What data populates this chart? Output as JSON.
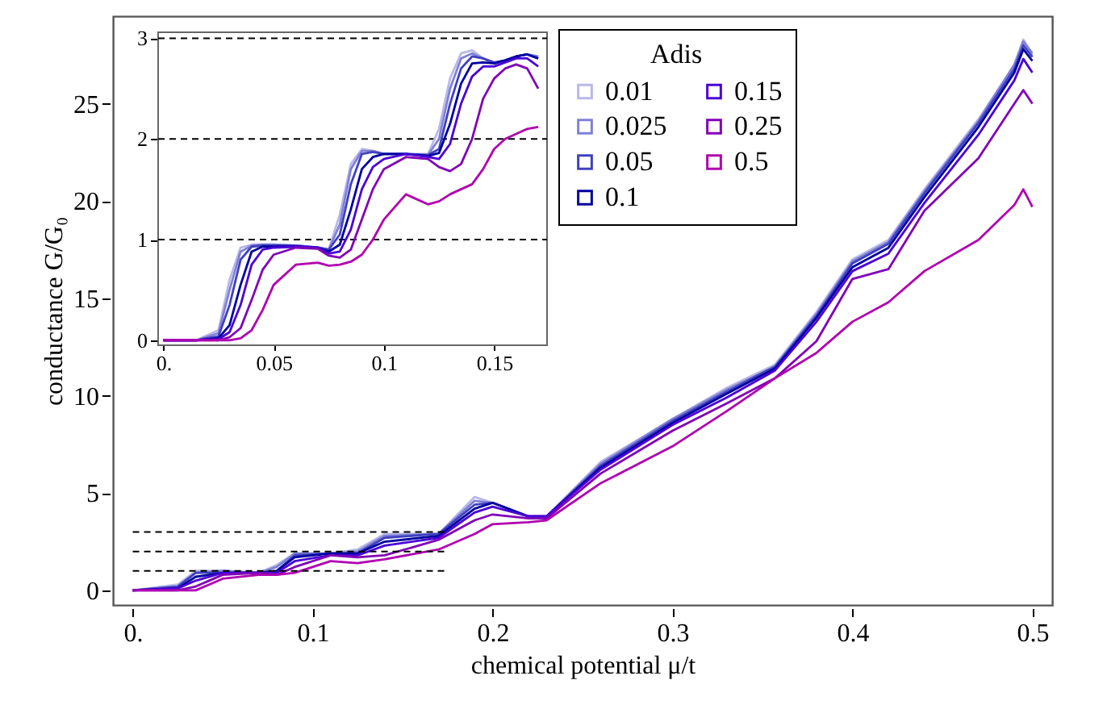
{
  "chart_data": [
    {
      "type": "line",
      "xlabel": "chemical potential  μ/t",
      "ylabel": "conductance  G/G₀",
      "legend_title": "Adis",
      "legend": "top",
      "grid": false,
      "xlim": [
        -0.011,
        0.511
      ],
      "ylim": [
        -0.75,
        29.5
      ],
      "xticks": [
        {
          "value": 0,
          "label": "0."
        },
        0.1,
        0.2,
        0.3,
        0.4,
        0.5
      ],
      "yticks": [
        0,
        5,
        10,
        15,
        20,
        25
      ],
      "x": [
        0,
        0.025,
        0.035,
        0.05,
        0.07,
        0.08,
        0.09,
        0.11,
        0.125,
        0.14,
        0.17,
        0.19,
        0.2,
        0.22,
        0.23,
        0.26,
        0.3,
        0.33,
        0.357,
        0.38,
        0.4,
        0.42,
        0.44,
        0.47,
        0.49,
        0.495,
        0.5
      ],
      "ref_lines": [
        {
          "axis": "y",
          "value": 1,
          "color": "#000000",
          "line_style": "dashed"
        },
        {
          "axis": "y",
          "value": 2,
          "color": "#000000",
          "line_style": "dashed"
        },
        {
          "axis": "y",
          "value": 3,
          "color": "#000000",
          "line_style": "dashed"
        }
      ],
      "series": [
        {
          "name": "0.01",
          "color": "#b8b8e8",
          "values": [
            0,
            0.3,
            1.0,
            1.0,
            0.9,
            1.3,
            1.9,
            1.9,
            2.1,
            2.9,
            2.9,
            4.8,
            4.5,
            3.8,
            3.8,
            6.6,
            8.8,
            10.4,
            11.6,
            14.3,
            17.0,
            18.0,
            20.6,
            24.2,
            27.0,
            28.3,
            27.5
          ]
        },
        {
          "name": "0.025",
          "color": "#8080d8",
          "values": [
            0,
            0.2,
            0.9,
            1.0,
            0.9,
            1.2,
            1.9,
            1.9,
            2.0,
            2.8,
            2.9,
            4.6,
            4.5,
            3.8,
            3.8,
            6.5,
            8.8,
            10.3,
            11.5,
            14.2,
            16.9,
            17.9,
            20.5,
            24.1,
            27.0,
            28.2,
            27.6
          ]
        },
        {
          "name": "0.05",
          "color": "#4040c0",
          "values": [
            0,
            0.2,
            0.9,
            0.9,
            0.9,
            1.0,
            1.8,
            1.9,
            1.9,
            2.7,
            2.9,
            4.4,
            4.5,
            3.8,
            3.8,
            6.4,
            8.7,
            10.2,
            11.5,
            14.1,
            16.8,
            17.8,
            20.4,
            24.0,
            26.8,
            28.0,
            27.4
          ]
        },
        {
          "name": "0.1",
          "color": "#0000a0",
          "values": [
            0,
            0.1,
            0.7,
            0.9,
            0.9,
            1.0,
            1.7,
            1.9,
            1.9,
            2.5,
            2.8,
            4.2,
            4.5,
            3.8,
            3.8,
            6.3,
            8.6,
            10.1,
            11.4,
            14.0,
            16.6,
            17.6,
            20.2,
            23.8,
            26.6,
            27.8,
            27.2
          ]
        },
        {
          "name": "0.15",
          "color": "#4a00d8",
          "values": [
            0,
            0.1,
            0.5,
            0.9,
            0.9,
            0.9,
            1.5,
            1.8,
            1.8,
            2.3,
            2.7,
            4.0,
            4.3,
            3.8,
            3.8,
            6.2,
            8.5,
            9.9,
            11.3,
            13.8,
            16.4,
            17.3,
            19.9,
            23.4,
            26.2,
            27.3,
            26.6
          ]
        },
        {
          "name": "0.25",
          "color": "#8000b8",
          "values": [
            0,
            0,
            0.2,
            0.8,
            0.9,
            0.8,
            1.2,
            1.8,
            1.7,
            1.8,
            2.6,
            3.6,
            3.9,
            3.7,
            3.7,
            6.0,
            8.2,
            9.6,
            10.9,
            12.8,
            16.0,
            16.5,
            19.5,
            22.2,
            25.0,
            25.7,
            25.0
          ]
        },
        {
          "name": "0.5",
          "color": "#b000b0",
          "values": [
            0,
            0,
            0,
            0.6,
            0.8,
            0.8,
            0.9,
            1.5,
            1.4,
            1.6,
            2.1,
            2.9,
            3.4,
            3.5,
            3.6,
            5.5,
            7.4,
            9.2,
            10.9,
            12.2,
            13.8,
            14.8,
            16.4,
            18.0,
            19.8,
            20.6,
            19.7
          ]
        }
      ]
    },
    {
      "type": "line",
      "grid": false,
      "xlim": [
        -0.0024,
        0.174
      ],
      "ylim": [
        -0.05,
        3.06
      ],
      "xticks": [
        {
          "value": 0,
          "label": "0."
        },
        0.05,
        0.1,
        0.15
      ],
      "yticks": [
        0,
        1,
        2,
        3
      ],
      "x": [
        0,
        0.015,
        0.025,
        0.03,
        0.035,
        0.04,
        0.045,
        0.05,
        0.06,
        0.07,
        0.075,
        0.08,
        0.085,
        0.09,
        0.095,
        0.1,
        0.11,
        0.12,
        0.125,
        0.13,
        0.135,
        0.14,
        0.145,
        0.15,
        0.155,
        0.16,
        0.165,
        0.17
      ],
      "ref_lines": [
        {
          "axis": "y",
          "value": 1,
          "color": "#000000",
          "line_style": "dashed"
        },
        {
          "axis": "y",
          "value": 2,
          "color": "#000000",
          "line_style": "dashed"
        },
        {
          "axis": "y",
          "value": 3,
          "color": "#000000",
          "line_style": "dashed"
        }
      ],
      "series": [
        {
          "name": "0.01",
          "color": "#b8b8e8",
          "values": [
            0,
            0,
            0.1,
            0.6,
            0.92,
            0.95,
            0.95,
            0.95,
            0.94,
            0.92,
            0.9,
            1.25,
            1.75,
            1.9,
            1.88,
            1.85,
            1.85,
            1.85,
            2.1,
            2.6,
            2.85,
            2.88,
            2.8,
            2.75,
            2.78,
            2.82,
            2.84,
            2.82
          ]
        },
        {
          "name": "0.025",
          "color": "#8080d8",
          "values": [
            0,
            0,
            0.07,
            0.5,
            0.88,
            0.94,
            0.95,
            0.95,
            0.94,
            0.92,
            0.9,
            1.15,
            1.7,
            1.88,
            1.88,
            1.85,
            1.85,
            1.84,
            2.0,
            2.5,
            2.8,
            2.85,
            2.8,
            2.75,
            2.78,
            2.82,
            2.84,
            2.82
          ]
        },
        {
          "name": "0.05",
          "color": "#4040c0",
          "values": [
            0,
            0,
            0.04,
            0.35,
            0.8,
            0.93,
            0.94,
            0.94,
            0.94,
            0.92,
            0.9,
            1.05,
            1.55,
            1.85,
            1.87,
            1.85,
            1.85,
            1.84,
            1.9,
            2.35,
            2.7,
            2.82,
            2.8,
            2.76,
            2.78,
            2.82,
            2.84,
            2.8
          ]
        },
        {
          "name": "0.1",
          "color": "#0000a0",
          "values": [
            0,
            0,
            0.02,
            0.15,
            0.55,
            0.88,
            0.93,
            0.93,
            0.93,
            0.92,
            0.88,
            0.95,
            1.3,
            1.7,
            1.82,
            1.85,
            1.85,
            1.83,
            1.86,
            2.15,
            2.55,
            2.75,
            2.76,
            2.75,
            2.78,
            2.82,
            2.84,
            2.8
          ]
        },
        {
          "name": "0.15",
          "color": "#4a00d8",
          "values": [
            0,
            0,
            0.01,
            0.08,
            0.35,
            0.75,
            0.9,
            0.92,
            0.93,
            0.92,
            0.86,
            0.88,
            1.1,
            1.5,
            1.72,
            1.8,
            1.85,
            1.82,
            1.8,
            1.95,
            2.35,
            2.62,
            2.72,
            2.72,
            2.76,
            2.8,
            2.8,
            2.72
          ]
        },
        {
          "name": "0.25",
          "color": "#8000b8",
          "values": [
            0,
            0,
            0,
            0.03,
            0.12,
            0.4,
            0.7,
            0.85,
            0.92,
            0.91,
            0.84,
            0.82,
            0.9,
            1.2,
            1.5,
            1.7,
            1.82,
            1.8,
            1.72,
            1.68,
            1.75,
            2.0,
            2.4,
            2.6,
            2.7,
            2.74,
            2.7,
            2.5
          ]
        },
        {
          "name": "0.5",
          "color": "#b000b0",
          "values": [
            0,
            0,
            0,
            0,
            0.02,
            0.1,
            0.3,
            0.55,
            0.75,
            0.77,
            0.74,
            0.75,
            0.78,
            0.85,
            1.0,
            1.2,
            1.45,
            1.35,
            1.38,
            1.45,
            1.5,
            1.55,
            1.7,
            1.9,
            2.0,
            2.05,
            2.1,
            2.12
          ]
        }
      ]
    }
  ]
}
